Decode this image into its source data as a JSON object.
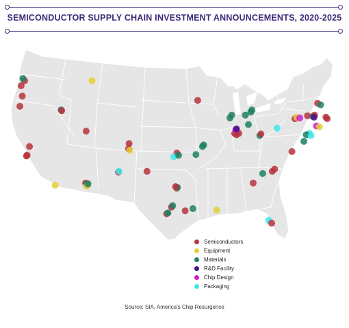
{
  "title": "SEMICONDUCTOR SUPPLY CHAIN INVESTMENT ANNOUNCEMENTS, 2020-2025",
  "source": "Source: SIA, America's Chip Resurgence",
  "colors": {
    "title": "#3f2a7a",
    "land": "#e6e6e6",
    "border": "#ffffff"
  },
  "legend": [
    {
      "key": "semiconductors",
      "label": "Semiconductors",
      "color": "#b8323c"
    },
    {
      "key": "equipment",
      "label": "Equipment",
      "color": "#e3cf32"
    },
    {
      "key": "materials",
      "label": "Materials",
      "color": "#1f8063"
    },
    {
      "key": "rnd",
      "label": "R&D Facility",
      "color": "#4b0f8c"
    },
    {
      "key": "chipdesign",
      "label": "Chip Design",
      "color": "#d21bd1"
    },
    {
      "key": "packaging",
      "label": "Packaging",
      "color": "#3fe7ea"
    }
  ],
  "sites": [
    {
      "cat": "semiconductors",
      "lon": -122.3,
      "lat": 47.6
    },
    {
      "cat": "materials",
      "lon": -122.6,
      "lat": 47.9
    },
    {
      "cat": "semiconductors",
      "lon": -122.9,
      "lat": 46.9
    },
    {
      "cat": "semiconductors",
      "lon": -122.7,
      "lat": 45.5
    },
    {
      "cat": "semiconductors",
      "lon": -123.1,
      "lat": 44.1
    },
    {
      "cat": "semiconductors",
      "lon": -121.9,
      "lat": 37.4
    },
    {
      "cat": "semiconductors",
      "lon": -122.0,
      "lat": 37.3
    },
    {
      "cat": "semiconductors",
      "lon": -121.5,
      "lat": 38.6
    },
    {
      "cat": "equipment",
      "lon": -117.2,
      "lat": 33.3
    },
    {
      "cat": "materials",
      "lon": -116.2,
      "lat": 43.6
    },
    {
      "cat": "semiconductors",
      "lon": -116.1,
      "lat": 43.5
    },
    {
      "cat": "equipment",
      "lon": -111.0,
      "lat": 47.6
    },
    {
      "cat": "semiconductors",
      "lon": -112.0,
      "lat": 40.7
    },
    {
      "cat": "semiconductors",
      "lon": -112.1,
      "lat": 33.6
    },
    {
      "cat": "materials",
      "lon": -111.9,
      "lat": 33.4
    },
    {
      "cat": "materials",
      "lon": -111.8,
      "lat": 33.3
    },
    {
      "cat": "equipment",
      "lon": -111.9,
      "lat": 33.2
    },
    {
      "cat": "materials",
      "lon": -111.7,
      "lat": 33.5
    },
    {
      "cat": "semiconductors",
      "lon": -106.6,
      "lat": 35.1
    },
    {
      "cat": "packaging",
      "lon": -106.5,
      "lat": 35.2
    },
    {
      "cat": "semiconductors",
      "lon": -104.8,
      "lat": 39.0
    },
    {
      "cat": "semiconductors",
      "lon": -104.9,
      "lat": 38.3
    },
    {
      "cat": "equipment",
      "lon": -104.7,
      "lat": 38.1
    },
    {
      "cat": "semiconductors",
      "lon": -101.8,
      "lat": 35.2
    },
    {
      "cat": "semiconductors",
      "lon": -97.7,
      "lat": 30.3
    },
    {
      "cat": "materials",
      "lon": -97.5,
      "lat": 30.5
    },
    {
      "cat": "semiconductors",
      "lon": -96.8,
      "lat": 32.9
    },
    {
      "cat": "materials",
      "lon": -96.7,
      "lat": 33.0
    },
    {
      "cat": "semiconductors",
      "lon": -97.0,
      "lat": 33.1
    },
    {
      "cat": "semiconductors",
      "lon": -98.5,
      "lat": 29.4
    },
    {
      "cat": "materials",
      "lon": -98.3,
      "lat": 29.5
    },
    {
      "cat": "semiconductors",
      "lon": -95.4,
      "lat": 29.8
    },
    {
      "cat": "materials",
      "lon": -94.1,
      "lat": 30.1
    },
    {
      "cat": "equipment",
      "lon": -90.1,
      "lat": 29.9
    },
    {
      "cat": "semiconductors",
      "lon": -96.8,
      "lat": 37.7
    },
    {
      "cat": "packaging",
      "lon": -97.3,
      "lat": 37.2
    },
    {
      "cat": "materials",
      "lon": -96.5,
      "lat": 37.4
    },
    {
      "cat": "materials",
      "lon": -93.6,
      "lat": 37.5
    },
    {
      "cat": "materials",
      "lon": -92.5,
      "lat": 38.6
    },
    {
      "cat": "materials",
      "lon": -92.3,
      "lat": 38.8
    },
    {
      "cat": "semiconductors",
      "lon": -93.3,
      "lat": 44.9
    },
    {
      "cat": "materials",
      "lon": -87.9,
      "lat": 42.5
    },
    {
      "cat": "materials",
      "lon": -87.6,
      "lat": 42.9
    },
    {
      "cat": "semiconductors",
      "lon": -87.1,
      "lat": 40.4
    },
    {
      "cat": "semiconductors",
      "lon": -86.8,
      "lat": 40.2
    },
    {
      "cat": "semiconductors",
      "lon": -86.4,
      "lat": 40.4
    },
    {
      "cat": "chipdesign",
      "lon": -86.9,
      "lat": 40.9
    },
    {
      "cat": "rnd",
      "lon": -86.8,
      "lat": 41.0
    },
    {
      "cat": "materials",
      "lon": -84.4,
      "lat": 43.3
    },
    {
      "cat": "materials",
      "lon": -84.2,
      "lat": 43.6
    },
    {
      "cat": "materials",
      "lon": -85.3,
      "lat": 42.9
    },
    {
      "cat": "materials",
      "lon": -84.8,
      "lat": 41.6
    },
    {
      "cat": "materials",
      "lon": -82.9,
      "lat": 40.1
    },
    {
      "cat": "semiconductors",
      "lon": -82.7,
      "lat": 40.3
    },
    {
      "cat": "packaging",
      "lon": -80.0,
      "lat": 41.1
    },
    {
      "cat": "semiconductors",
      "lon": -80.8,
      "lat": 35.2
    },
    {
      "cat": "semiconductors",
      "lon": -80.4,
      "lat": 35.5
    },
    {
      "cat": "materials",
      "lon": -82.4,
      "lat": 34.9
    },
    {
      "cat": "semiconductors",
      "lon": -84.0,
      "lat": 33.6
    },
    {
      "cat": "packaging",
      "lon": -81.4,
      "lat": 28.5
    },
    {
      "cat": "semiconductors",
      "lon": -80.9,
      "lat": 28.1
    },
    {
      "cat": "semiconductors",
      "lon": -77.0,
      "lat": 42.4
    },
    {
      "cat": "equipment",
      "lon": -76.7,
      "lat": 42.6
    },
    {
      "cat": "chipdesign",
      "lon": -76.2,
      "lat": 42.5
    },
    {
      "cat": "semiconductors",
      "lon": -74.9,
      "lat": 42.8
    },
    {
      "cat": "materials",
      "lon": -74.0,
      "lat": 42.7
    },
    {
      "cat": "semiconductors",
      "lon": -73.7,
      "lat": 42.9
    },
    {
      "cat": "rnd",
      "lon": -73.8,
      "lat": 42.6
    },
    {
      "cat": "chipdesign",
      "lon": -73.4,
      "lat": 41.4
    },
    {
      "cat": "semiconductors",
      "lon": -73.2,
      "lat": 44.5
    },
    {
      "cat": "materials",
      "lon": -72.7,
      "lat": 44.3
    },
    {
      "cat": "semiconductors",
      "lon": -71.8,
      "lat": 42.6
    },
    {
      "cat": "semiconductors",
      "lon": -71.6,
      "lat": 42.4
    },
    {
      "cat": "equipment",
      "lon": -72.9,
      "lat": 41.3
    },
    {
      "cat": "packaging",
      "lon": -74.6,
      "lat": 40.4
    },
    {
      "cat": "materials",
      "lon": -75.1,
      "lat": 40.2
    },
    {
      "cat": "packaging",
      "lon": -74.3,
      "lat": 40.1
    },
    {
      "cat": "semiconductors",
      "lon": -77.5,
      "lat": 37.9
    },
    {
      "cat": "materials",
      "lon": -75.5,
      "lat": 39.3
    }
  ]
}
